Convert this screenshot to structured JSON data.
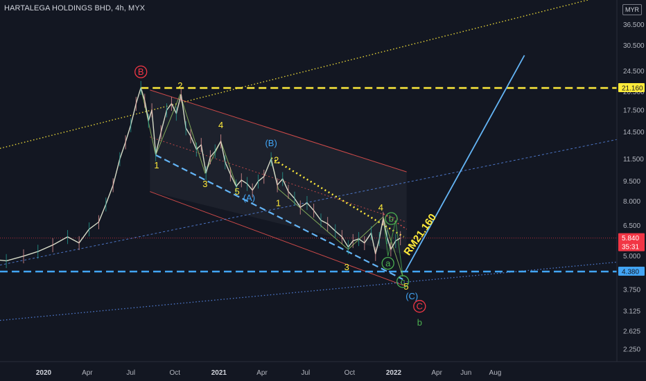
{
  "header": {
    "title": "HARTALEGA HOLDINGS BHD, 4h, MYX",
    "currency": "MYR"
  },
  "chart_data": {
    "type": "line",
    "title": "HARTALEGA HOLDINGS BHD, 4h, MYX",
    "y_scale": "log",
    "ylim": [
      2.0,
      48.0
    ],
    "y_ticks": [
      "36.500",
      "30.500",
      "24.500",
      "20.500",
      "17.500",
      "14.500",
      "11.500",
      "9.500",
      "8.000",
      "6.500",
      "5.000",
      "4.380",
      "3.750",
      "3.125",
      "2.625",
      "2.250"
    ],
    "x_ticks": [
      {
        "label": "2020",
        "date": "2020-01-01",
        "bold": true
      },
      {
        "label": "Apr",
        "date": "2020-04-01"
      },
      {
        "label": "Jul",
        "date": "2020-07-01"
      },
      {
        "label": "Oct",
        "date": "2020-10-01"
      },
      {
        "label": "2021",
        "date": "2021-01-01",
        "bold": true
      },
      {
        "label": "Apr",
        "date": "2021-04-01"
      },
      {
        "label": "Jul",
        "date": "2021-07-01"
      },
      {
        "label": "Oct",
        "date": "2021-10-01"
      },
      {
        "label": "2022",
        "date": "2022-01-01",
        "bold": true
      },
      {
        "label": "Apr",
        "date": "2022-04-01"
      },
      {
        "label": "Jun",
        "date": "2022-06-01"
      },
      {
        "label": "Aug",
        "date": "2022-08-01"
      }
    ],
    "price_series": {
      "name": "HARTALEGA HOLDINGS BHD",
      "points": [
        [
          "2019-09-01",
          4.9
        ],
        [
          "2019-10-15",
          4.8
        ],
        [
          "2019-11-20",
          5.0
        ],
        [
          "2019-12-20",
          5.2
        ],
        [
          "2020-01-20",
          5.5
        ],
        [
          "2020-02-20",
          5.9
        ],
        [
          "2020-03-15",
          5.6
        ],
        [
          "2020-04-05",
          6.3
        ],
        [
          "2020-04-25",
          6.7
        ],
        [
          "2020-05-10",
          7.8
        ],
        [
          "2020-05-25",
          9.2
        ],
        [
          "2020-06-08",
          11.5
        ],
        [
          "2020-06-20",
          13.3
        ],
        [
          "2020-07-01",
          15.4
        ],
        [
          "2020-07-12",
          18.5
        ],
        [
          "2020-07-22",
          21.2
        ],
        [
          "2020-07-30",
          19.0
        ],
        [
          "2020-08-07",
          16.0
        ],
        [
          "2020-08-14",
          17.5
        ],
        [
          "2020-08-22",
          12.0
        ],
        [
          "2020-09-02",
          14.5
        ],
        [
          "2020-09-14",
          17.5
        ],
        [
          "2020-09-24",
          18.5
        ],
        [
          "2020-10-04",
          17.0
        ],
        [
          "2020-10-14",
          20.0
        ],
        [
          "2020-10-24",
          15.0
        ],
        [
          "2020-11-03",
          14.0
        ],
        [
          "2020-11-15",
          12.5
        ],
        [
          "2020-11-25",
          13.0
        ],
        [
          "2020-12-05",
          10.2
        ],
        [
          "2020-12-14",
          11.7
        ],
        [
          "2020-12-24",
          12.3
        ],
        [
          "2021-01-05",
          13.4
        ],
        [
          "2021-01-14",
          11.2
        ],
        [
          "2021-01-25",
          10.1
        ],
        [
          "2021-02-06",
          9.1
        ],
        [
          "2021-02-17",
          9.6
        ],
        [
          "2021-03-01",
          9.3
        ],
        [
          "2021-03-12",
          8.8
        ],
        [
          "2021-03-24",
          9.5
        ],
        [
          "2021-04-05",
          9.9
        ],
        [
          "2021-04-20",
          11.5
        ],
        [
          "2021-05-03",
          9.2
        ],
        [
          "2021-05-14",
          9.7
        ],
        [
          "2021-05-26",
          8.7
        ],
        [
          "2021-06-08",
          8.2
        ],
        [
          "2021-06-20",
          7.6
        ],
        [
          "2021-07-04",
          7.9
        ],
        [
          "2021-07-18",
          7.4
        ],
        [
          "2021-08-02",
          6.8
        ],
        [
          "2021-08-16",
          6.6
        ],
        [
          "2021-09-01",
          6.2
        ],
        [
          "2021-09-15",
          5.9
        ],
        [
          "2021-09-28",
          5.4
        ],
        [
          "2021-10-08",
          5.7
        ],
        [
          "2021-10-20",
          5.8
        ],
        [
          "2021-11-01",
          5.6
        ],
        [
          "2021-11-15",
          6.1
        ],
        [
          "2021-11-24",
          5.1
        ],
        [
          "2021-12-02",
          5.8
        ],
        [
          "2021-12-10",
          6.9
        ],
        [
          "2021-12-18",
          5.9
        ],
        [
          "2021-12-26",
          5.3
        ],
        [
          "2022-01-05",
          5.7
        ],
        [
          "2022-01-15",
          5.84
        ]
      ]
    },
    "current_price": {
      "label": "5.840",
      "countdown": "35:31",
      "value": 5.84,
      "color": "#f23645"
    },
    "target_line": {
      "label": "21.160",
      "value": 21.16,
      "color": "#ffeb3b"
    },
    "support_line": {
      "label": "4.380",
      "value": 4.38,
      "color": "#42a5f5"
    },
    "projection": {
      "label": "RM21.160",
      "start": [
        "2022-01-25",
        4.38
      ],
      "end": [
        "2022-10-01",
        28.0
      ],
      "color": "#64b5f6"
    },
    "annotations": [
      {
        "text": "B",
        "date": "2020-07-22",
        "price": 24.3,
        "color": "#f23645",
        "circle": true
      },
      {
        "text": "2",
        "date": "2020-10-12",
        "price": 21.6,
        "color": "#ffeb3b"
      },
      {
        "text": "1",
        "date": "2020-08-24",
        "price": 10.9,
        "color": "#ffeb3b"
      },
      {
        "text": "3",
        "date": "2020-12-03",
        "price": 9.3,
        "color": "#ffeb3b"
      },
      {
        "text": "4",
        "date": "2021-01-05",
        "price": 15.4,
        "color": "#ffeb3b"
      },
      {
        "text": "5",
        "date": "2021-02-08",
        "price": 8.7,
        "color": "#ffeb3b"
      },
      {
        "text": "(A)",
        "date": "2021-03-05",
        "price": 8.25,
        "color": "#42a5f5"
      },
      {
        "text": "(B)",
        "date": "2021-04-20",
        "price": 13.2,
        "color": "#42a5f5"
      },
      {
        "text": "2",
        "date": "2021-05-01",
        "price": 11.4,
        "color": "#ffeb3b"
      },
      {
        "text": "1",
        "date": "2021-05-05",
        "price": 7.9,
        "color": "#ffeb3b"
      },
      {
        "text": "3",
        "date": "2021-09-25",
        "price": 4.55,
        "color": "#ffeb3b"
      },
      {
        "text": "4",
        "date": "2021-12-05",
        "price": 7.6,
        "color": "#ffeb3b"
      },
      {
        "text": "b",
        "date": "2021-12-27",
        "price": 6.9,
        "color": "#4caf50",
        "circle": true
      },
      {
        "text": "a",
        "date": "2021-12-20",
        "price": 4.7,
        "color": "#4caf50",
        "circle": true
      },
      {
        "text": "c",
        "date": "2022-01-20",
        "price": 4.02,
        "color": "#4caf50",
        "circle": true
      },
      {
        "text": "5",
        "date": "2022-01-27",
        "price": 3.85,
        "color": "#ffeb3b"
      },
      {
        "text": "(C)",
        "date": "2022-02-08",
        "price": 3.55,
        "color": "#42a5f5"
      },
      {
        "text": "C",
        "date": "2022-02-24",
        "price": 3.25,
        "color": "#f23645",
        "circle": true
      },
      {
        "text": "b",
        "date": "2022-02-24",
        "price": 2.83,
        "color": "#4caf50"
      }
    ],
    "grid": false
  }
}
